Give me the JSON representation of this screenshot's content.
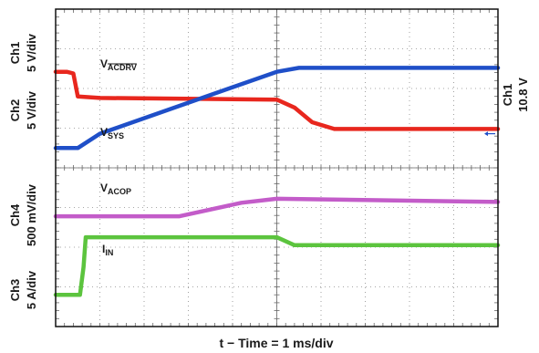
{
  "chart_data": {
    "type": "line",
    "title": "",
    "xlabel": "t − Time = 1 ms/div",
    "x_divisions": 10,
    "y_divisions": 8,
    "grid": true,
    "colors": {
      "VACDRV": "#e8271e",
      "VSYS": "#1f4fc8",
      "VACOP": "#c35cc9",
      "IIN": "#5cc43e",
      "marker": "#1f4fc8",
      "grid": "#8a8a8a"
    },
    "channel_labels": [
      {
        "ch": "Ch1",
        "scale": "5 V/div"
      },
      {
        "ch": "Ch2",
        "scale": "5 V/div"
      },
      {
        "ch": "Ch4",
        "scale": "500 mV/div"
      },
      {
        "ch": "Ch3",
        "scale": "5 A/div"
      }
    ],
    "right_label": {
      "ch": "Ch1",
      "value": "10.8 V"
    },
    "series": [
      {
        "name_main": "V",
        "name_sub": "ACDRV",
        "sub_overline": true,
        "x": [
          0,
          0.25,
          0.4,
          0.5,
          1.0,
          5.0,
          5.4,
          5.8,
          6.3,
          10.0
        ],
        "y": [
          6.42,
          6.42,
          6.38,
          5.8,
          5.76,
          5.72,
          5.52,
          5.15,
          4.98,
          4.98
        ]
      },
      {
        "name_main": "V",
        "name_sub": "SYS",
        "x": [
          0,
          0.5,
          1.0,
          5.0,
          5.5,
          10.0
        ],
        "y": [
          4.5,
          4.5,
          4.86,
          6.42,
          6.52,
          6.52
        ]
      },
      {
        "name_main": "V",
        "name_sub": "ACOP",
        "x": [
          0,
          2.8,
          4.2,
          5.0,
          10.0
        ],
        "y": [
          2.78,
          2.78,
          3.12,
          3.22,
          3.14
        ]
      },
      {
        "name_main": "I",
        "name_sub": "IN",
        "x": [
          0,
          0.55,
          0.63,
          0.68,
          5.0,
          5.4,
          10.0
        ],
        "y": [
          0.8,
          0.8,
          1.5,
          2.25,
          2.25,
          2.05,
          2.05
        ]
      }
    ]
  }
}
